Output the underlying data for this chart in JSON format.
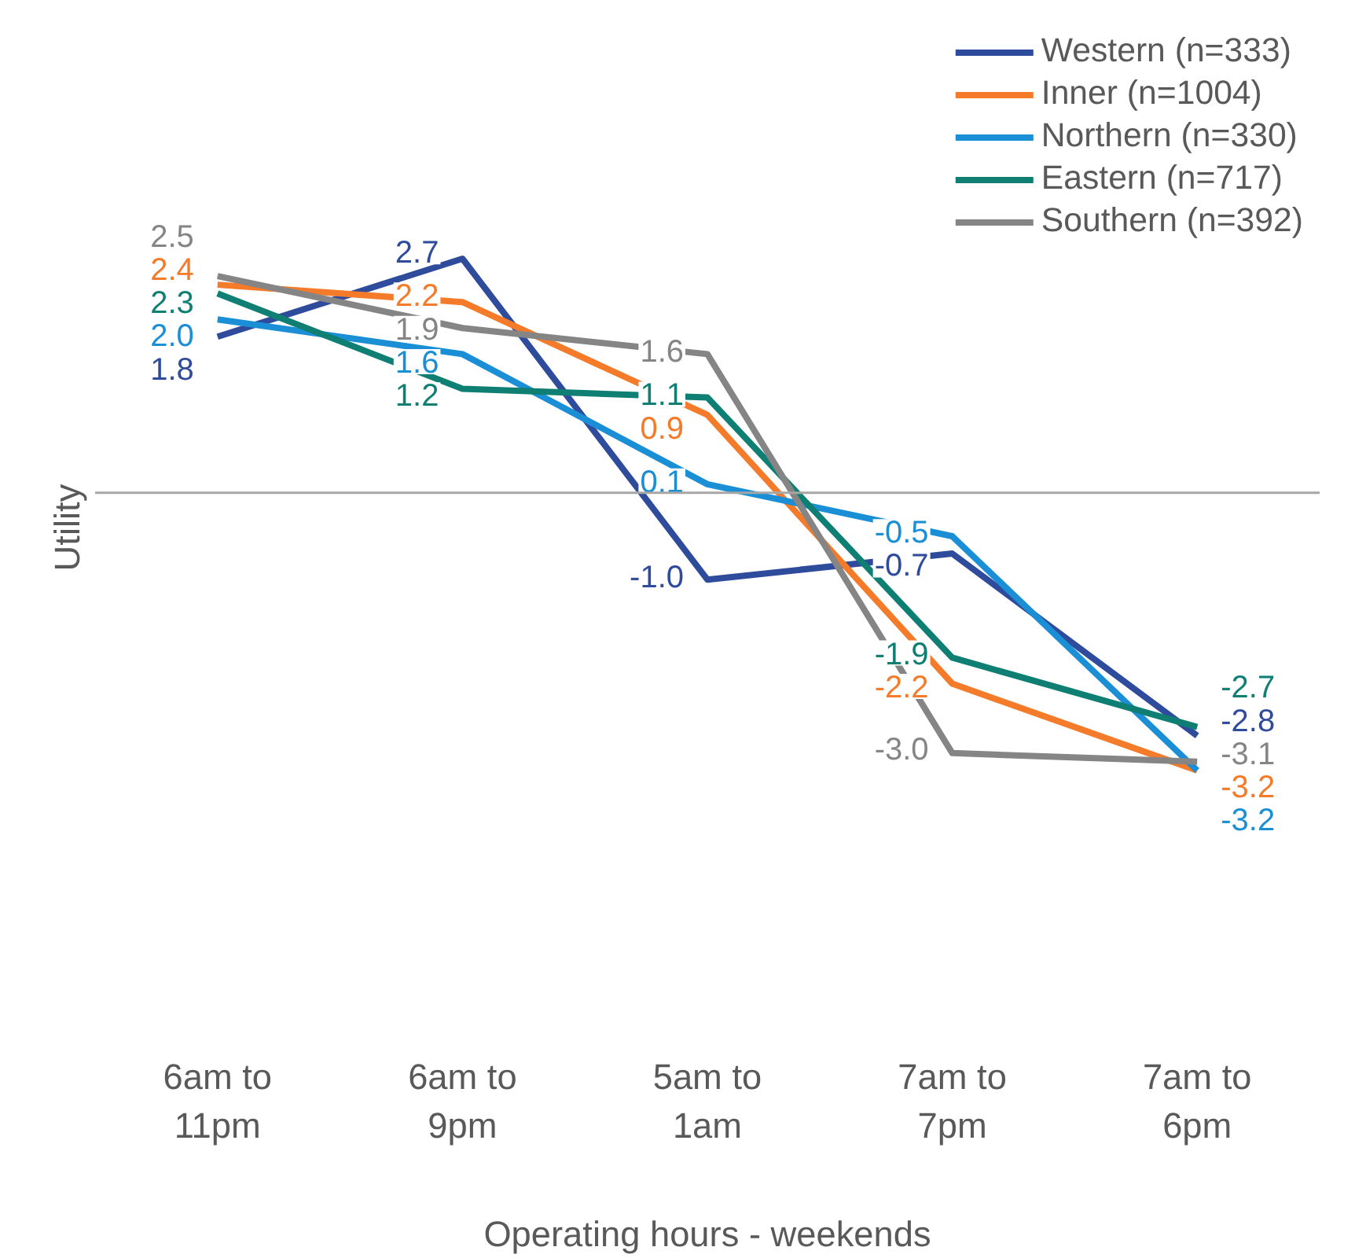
{
  "chart_data": {
    "type": "line",
    "xlabel": "Operating hours - weekends",
    "ylabel": "Utility",
    "categories": [
      "6am to\n11pm",
      "6am to\n9pm",
      "5am to\n1am",
      "7am to\n7pm",
      "7am to\n6pm"
    ],
    "series": [
      {
        "name": "Western (n=333)",
        "color": "#2f4b9c",
        "values": [
          1.8,
          2.7,
          -1.0,
          -0.7,
          -2.8
        ],
        "value_labels": [
          "1.8",
          "2.7",
          "-1.0",
          "-0.7",
          "-2.8"
        ]
      },
      {
        "name": "Inner (n=1004)",
        "color": "#f47b2a",
        "values": [
          2.4,
          2.2,
          0.9,
          -2.2,
          -3.2
        ],
        "value_labels": [
          "2.4",
          "2.2",
          "0.9",
          "-2.2",
          "-3.2"
        ]
      },
      {
        "name": "Northern (n=330)",
        "color": "#1a8fd6",
        "values": [
          2.0,
          1.6,
          0.1,
          -0.5,
          -3.2
        ],
        "value_labels": [
          "2.0",
          "1.6",
          "0.1",
          "-0.5",
          "-3.2"
        ]
      },
      {
        "name": "Eastern (n=717)",
        "color": "#0f7f73",
        "values": [
          2.3,
          1.2,
          1.1,
          -1.9,
          -2.7
        ],
        "value_labels": [
          "2.3",
          "1.2",
          "1.1",
          "-1.9",
          "-2.7"
        ]
      },
      {
        "name": "Southern (n=392)",
        "color": "#858585",
        "values": [
          2.5,
          1.9,
          1.6,
          -3.0,
          -3.1
        ],
        "value_labels": [
          "2.5",
          "1.9",
          "1.6",
          "-3.0",
          "-3.1"
        ]
      }
    ],
    "legend": "top right",
    "grid": false,
    "marker": "none",
    "line_style": "solid"
  }
}
